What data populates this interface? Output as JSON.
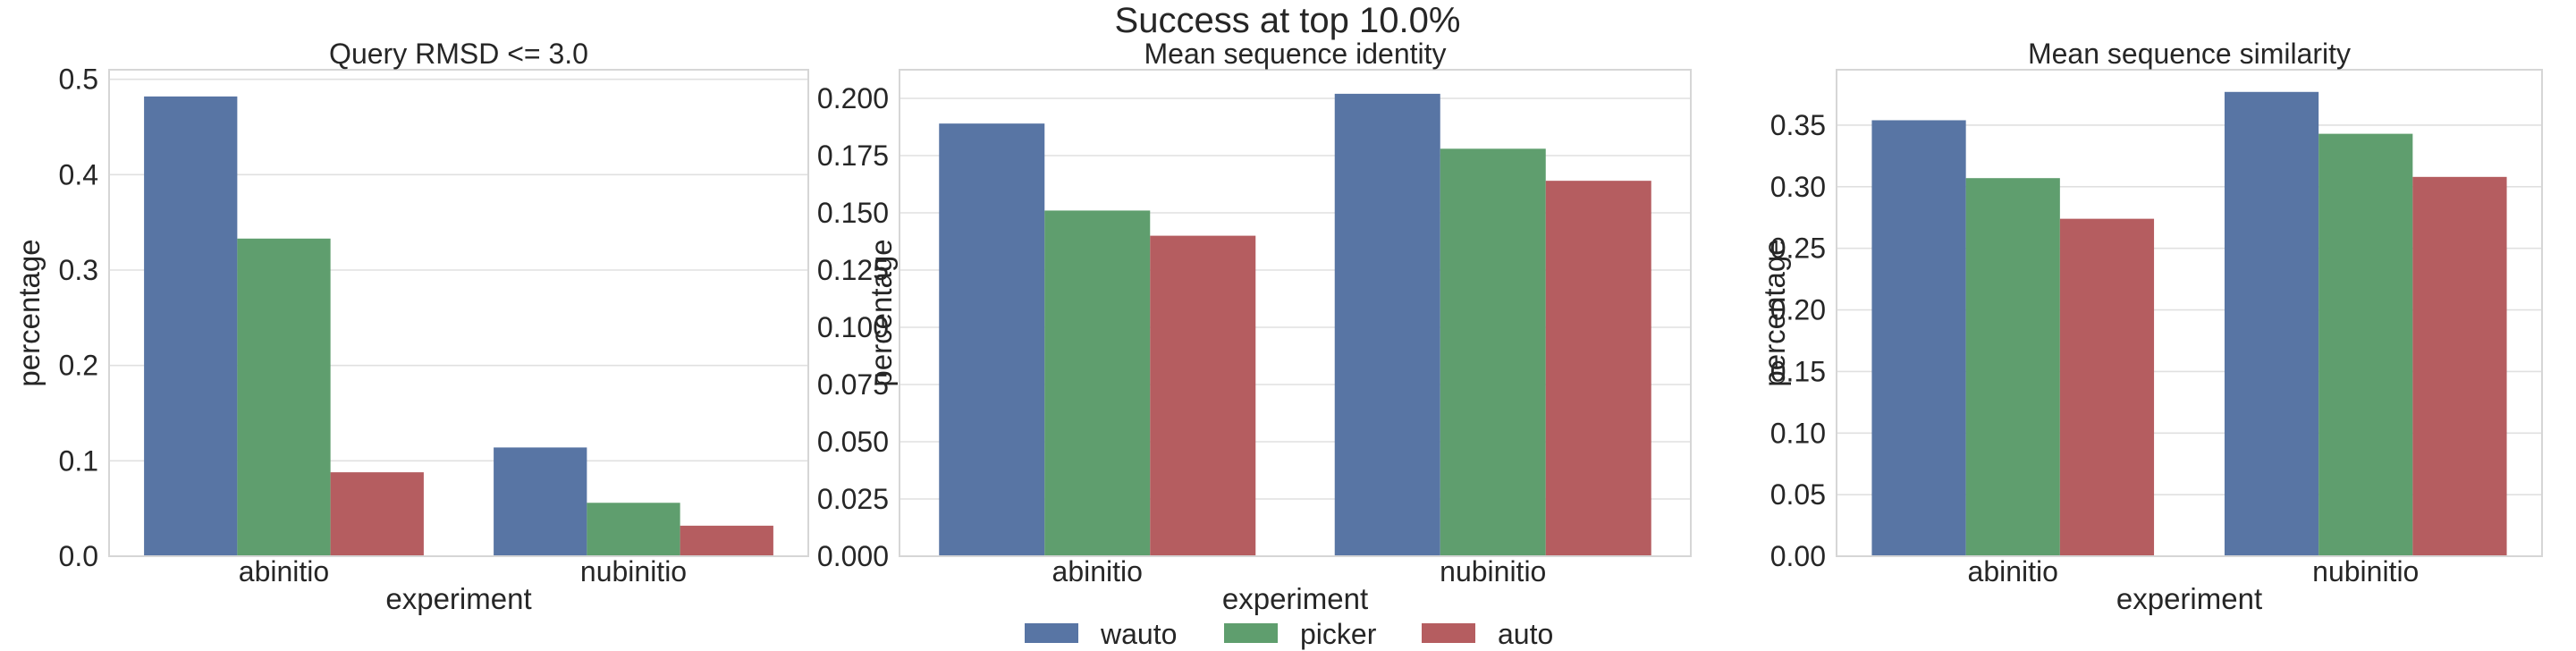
{
  "suptitle": "Success at top 10.0%",
  "legend": [
    {
      "label": "wauto",
      "color": "#5875a4"
    },
    {
      "label": "picker",
      "color": "#5f9e6e"
    },
    {
      "label": "auto",
      "color": "#b55d60"
    }
  ],
  "chart_data": [
    {
      "type": "bar",
      "title": "Query RMSD <= 3.0",
      "xlabel": "experiment",
      "ylabel": "percentage",
      "categories": [
        "abinitio",
        "nubinitio"
      ],
      "ylim": [
        0,
        0.51
      ],
      "yticks": [
        0.0,
        0.1,
        0.2,
        0.3,
        0.4,
        0.5
      ],
      "ytick_labels": [
        "0.0",
        "0.1",
        "0.2",
        "0.3",
        "0.4",
        "0.5"
      ],
      "series": [
        {
          "name": "wauto",
          "values": [
            0.482,
            0.114
          ]
        },
        {
          "name": "picker",
          "values": [
            0.333,
            0.056
          ]
        },
        {
          "name": "auto",
          "values": [
            0.088,
            0.032
          ]
        }
      ]
    },
    {
      "type": "bar",
      "title": "Mean sequence identity",
      "xlabel": "experiment",
      "ylabel": "percentage",
      "categories": [
        "abinitio",
        "nubinitio"
      ],
      "ylim": [
        0,
        0.2125
      ],
      "yticks": [
        0.0,
        0.025,
        0.05,
        0.075,
        0.1,
        0.125,
        0.15,
        0.175,
        0.2
      ],
      "ytick_labels": [
        "0.000",
        "0.025",
        "0.050",
        "0.075",
        "0.100",
        "0.125",
        "0.150",
        "0.175",
        "0.200"
      ],
      "series": [
        {
          "name": "wauto",
          "values": [
            0.189,
            0.202
          ]
        },
        {
          "name": "picker",
          "values": [
            0.151,
            0.178
          ]
        },
        {
          "name": "auto",
          "values": [
            0.14,
            0.164
          ]
        }
      ]
    },
    {
      "type": "bar",
      "title": "Mean sequence similarity",
      "xlabel": "experiment",
      "ylabel": "percentage",
      "categories": [
        "abinitio",
        "nubinitio"
      ],
      "ylim": [
        0,
        0.395
      ],
      "yticks": [
        0.0,
        0.05,
        0.1,
        0.15,
        0.2,
        0.25,
        0.3,
        0.35
      ],
      "ytick_labels": [
        "0.00",
        "0.05",
        "0.10",
        "0.15",
        "0.20",
        "0.25",
        "0.30",
        "0.35"
      ],
      "series": [
        {
          "name": "wauto",
          "values": [
            0.354,
            0.377
          ]
        },
        {
          "name": "picker",
          "values": [
            0.307,
            0.343
          ]
        },
        {
          "name": "auto",
          "values": [
            0.274,
            0.308
          ]
        }
      ]
    }
  ]
}
